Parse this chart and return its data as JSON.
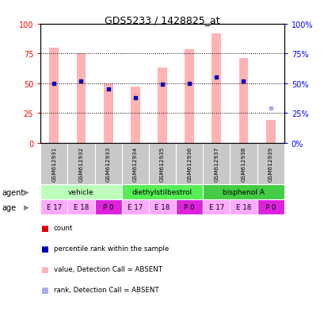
{
  "title": "GDS5233 / 1428825_at",
  "samples": [
    "GSM612931",
    "GSM612932",
    "GSM612933",
    "GSM612934",
    "GSM612935",
    "GSM612936",
    "GSM612937",
    "GSM612938",
    "GSM612939"
  ],
  "bar_values": [
    80,
    75,
    50,
    47,
    63,
    79,
    92,
    71,
    19
  ],
  "rank_values": [
    50,
    52,
    45,
    38,
    49,
    50,
    55,
    52,
    29
  ],
  "bar_color_absent": "#ffb3b3",
  "rank_color_present": "#0000bb",
  "rank_color_absent": "#aaaaee",
  "rank_absent_flags": [
    false,
    false,
    false,
    false,
    false,
    false,
    false,
    false,
    true
  ],
  "ages": [
    "E 17",
    "E 18",
    "P 0",
    "E 17",
    "E 18",
    "P 0",
    "E 17",
    "E 18",
    "P 0"
  ],
  "age_colors": [
    "#ffaaff",
    "#ffaaff",
    "#dd22dd",
    "#ffaaff",
    "#ffaaff",
    "#dd22dd",
    "#ffaaff",
    "#ffaaff",
    "#dd22dd"
  ],
  "agent_groups": [
    {
      "label": "vehicle",
      "start": 0,
      "end": 2,
      "color": "#bbffbb"
    },
    {
      "label": "diethylstilbestrol",
      "start": 3,
      "end": 5,
      "color": "#55ee55"
    },
    {
      "label": "bisphenol A",
      "start": 6,
      "end": 8,
      "color": "#44cc44"
    }
  ],
  "yticks": [
    0,
    25,
    50,
    75,
    100
  ],
  "legend_items": [
    {
      "label": "count",
      "color": "#dd0000"
    },
    {
      "label": "percentile rank within the sample",
      "color": "#0000bb"
    },
    {
      "label": "value, Detection Call = ABSENT",
      "color": "#ffb3b3"
    },
    {
      "label": "rank, Detection Call = ABSENT",
      "color": "#aaaaee"
    }
  ]
}
